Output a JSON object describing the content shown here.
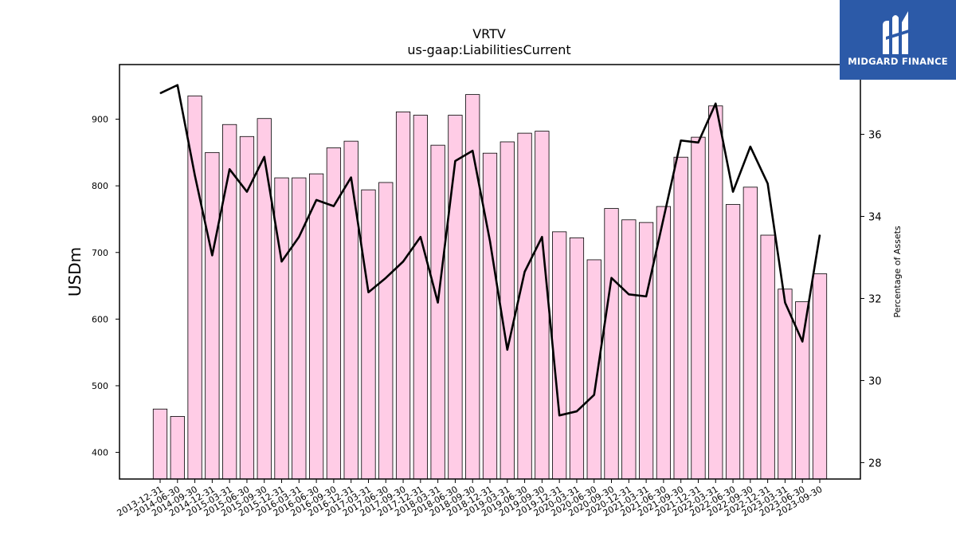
{
  "logo": {
    "text": "MIDGARD FINANCE"
  },
  "chart_data": {
    "type": "bar",
    "title": "VRTV",
    "subtitle": "us-gaap:LiabilitiesCurrent",
    "ylabel": "USDm",
    "ylabel_right": "Percentage of Assets",
    "ylim": [
      360,
      982
    ],
    "ylim_right": [
      27.6,
      37.7
    ],
    "yticks": [
      400,
      500,
      600,
      700,
      800,
      900
    ],
    "yticks_right": [
      28,
      30,
      32,
      34,
      36
    ],
    "grid": false,
    "categories": [
      "2013-12-31",
      "2014-06-30",
      "2014-09-30",
      "2014-12-31",
      "2015-03-31",
      "2015-06-30",
      "2015-09-30",
      "2015-12-31",
      "2016-03-31",
      "2016-06-30",
      "2016-09-30",
      "2016-12-31",
      "2017-03-31",
      "2017-06-30",
      "2017-09-30",
      "2017-12-31",
      "2018-03-31",
      "2018-06-30",
      "2018-09-30",
      "2018-12-31",
      "2019-03-31",
      "2019-06-30",
      "2019-09-30",
      "2019-12-31",
      "2020-03-31",
      "2020-06-30",
      "2020-09-30",
      "2020-12-31",
      "2021-03-31",
      "2021-06-30",
      "2021-09-30",
      "2021-12-31",
      "2022-03-31",
      "2022-06-30",
      "2022-09-30",
      "2022-12-31",
      "2023-03-31",
      "2023-06-30",
      "2023-09-30"
    ],
    "series": [
      {
        "type": "bar",
        "axis": "left",
        "color": "#ffcce6",
        "values": [
          465,
          454,
          935,
          850,
          892,
          874,
          901,
          812,
          812,
          818,
          857,
          867,
          794,
          805,
          911,
          906,
          861,
          906,
          937,
          849,
          866,
          879,
          882,
          731,
          722,
          689,
          766,
          749,
          745,
          769,
          843,
          873,
          920,
          772,
          798,
          726,
          645,
          626,
          668
        ]
      },
      {
        "type": "line",
        "axis": "right",
        "color": "#000000",
        "values": [
          37.0,
          37.2,
          35.0,
          33.05,
          35.15,
          34.6,
          35.45,
          32.9,
          33.5,
          34.4,
          34.25,
          34.95,
          32.15,
          32.5,
          32.9,
          33.5,
          31.9,
          35.35,
          35.6,
          33.4,
          30.75,
          32.65,
          33.5,
          29.15,
          29.25,
          29.65,
          32.5,
          32.1,
          32.05,
          33.95,
          35.85,
          35.8,
          36.75,
          34.6,
          35.7,
          34.8,
          31.9,
          30.95,
          33.55
        ]
      }
    ]
  }
}
